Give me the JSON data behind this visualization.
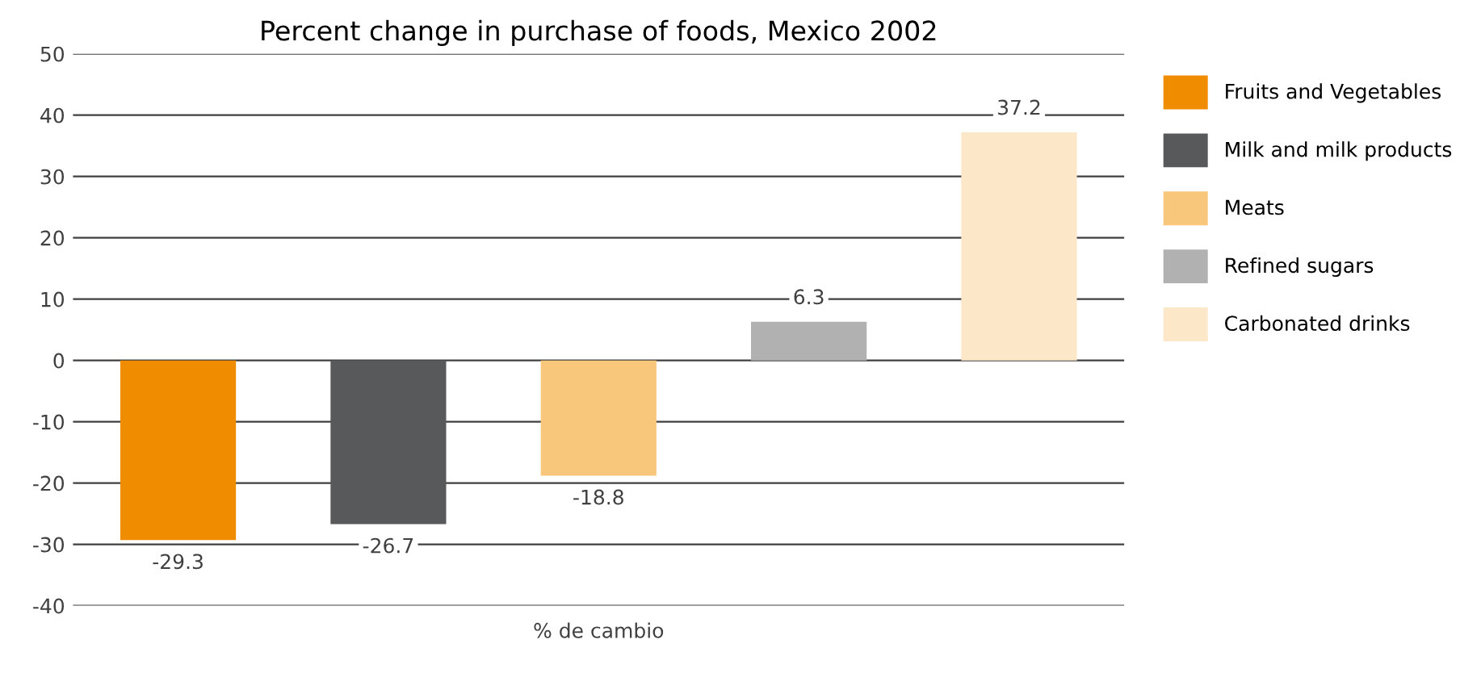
{
  "chart_data": {
    "type": "bar",
    "title": "Percent change in purchase of foods, Mexico 2002",
    "xlabel": "% de cambio",
    "categories": [
      null,
      null,
      null,
      null,
      null
    ],
    "series": [
      {
        "name": "Fruits and Vegetables",
        "color": "#ef8c00",
        "values": [
          -29.3,
          null,
          null,
          null,
          null
        ]
      },
      {
        "name": "Milk and milk products",
        "color": "#58595b",
        "values": [
          null,
          -26.7,
          null,
          null,
          null
        ]
      },
      {
        "name": "Meats",
        "color": "#f8c77c",
        "values": [
          null,
          null,
          -18.8,
          null,
          null
        ]
      },
      {
        "name": "Refined sugars",
        "color": "#b1b1b1",
        "values": [
          null,
          null,
          null,
          6.3,
          null
        ]
      },
      {
        "name": "Carbonated drinks",
        "color": "#fde7c9",
        "values": [
          null,
          null,
          null,
          null,
          37.2
        ]
      }
    ],
    "ylim": [
      -40,
      50
    ],
    "yticks": [
      -40,
      -30,
      -20,
      -10,
      0,
      10,
      20,
      30,
      40,
      50
    ],
    "grid": "y",
    "legend": "right",
    "data_labels": true
  }
}
